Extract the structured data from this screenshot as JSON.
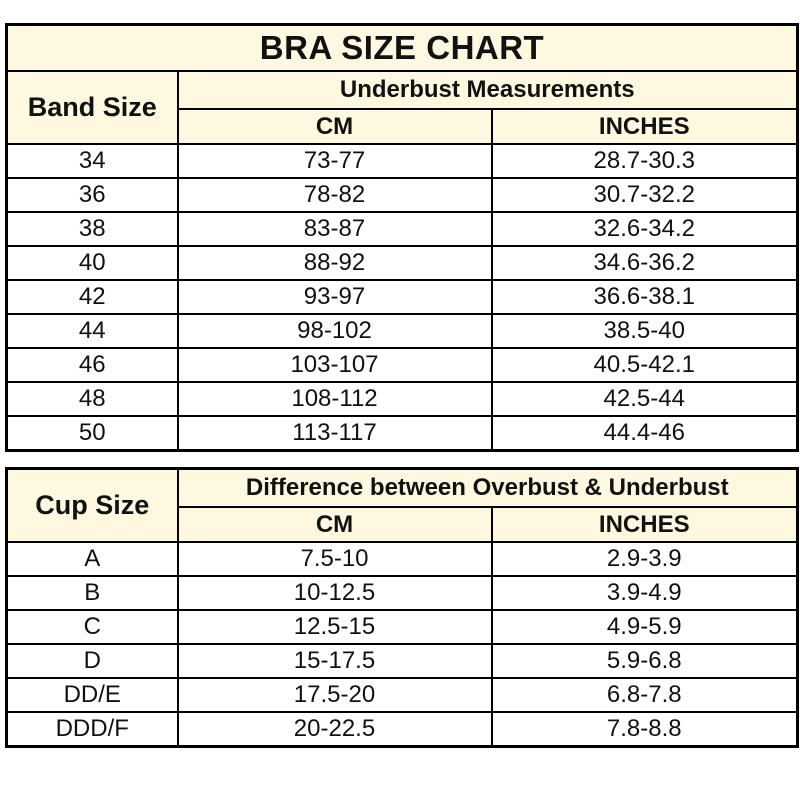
{
  "title": "BRA SIZE CHART",
  "colors": {
    "header_bg": "#FDF8DF",
    "border": "#000000",
    "data_row_bg": "#FFFFFF",
    "text": "#111111"
  },
  "band_table": {
    "row_header": "Band Size",
    "group_header": "Underbust Measurements",
    "col_headers": [
      "CM",
      "INCHES"
    ],
    "rows": [
      {
        "label": "34",
        "cm": "73-77",
        "inches": "28.7-30.3"
      },
      {
        "label": "36",
        "cm": "78-82",
        "inches": "30.7-32.2"
      },
      {
        "label": "38",
        "cm": "83-87",
        "inches": "32.6-34.2"
      },
      {
        "label": "40",
        "cm": "88-92",
        "inches": "34.6-36.2"
      },
      {
        "label": "42",
        "cm": "93-97",
        "inches": "36.6-38.1"
      },
      {
        "label": "44",
        "cm": "98-102",
        "inches": "38.5-40"
      },
      {
        "label": "46",
        "cm": "103-107",
        "inches": "40.5-42.1"
      },
      {
        "label": "48",
        "cm": "108-112",
        "inches": "42.5-44"
      },
      {
        "label": "50",
        "cm": "113-117",
        "inches": "44.4-46"
      }
    ]
  },
  "cup_table": {
    "row_header": "Cup Size",
    "group_header": "Difference between Overbust & Underbust",
    "col_headers": [
      "CM",
      "INCHES"
    ],
    "rows": [
      {
        "label": "A",
        "cm": "7.5-10",
        "inches": "2.9-3.9"
      },
      {
        "label": "B",
        "cm": "10-12.5",
        "inches": "3.9-4.9"
      },
      {
        "label": "C",
        "cm": "12.5-15",
        "inches": "4.9-5.9"
      },
      {
        "label": "D",
        "cm": "15-17.5",
        "inches": "5.9-6.8"
      },
      {
        "label": "DD/E",
        "cm": "17.5-20",
        "inches": "6.8-7.8"
      },
      {
        "label": "DDD/F",
        "cm": "20-22.5",
        "inches": "7.8-8.8"
      }
    ]
  }
}
